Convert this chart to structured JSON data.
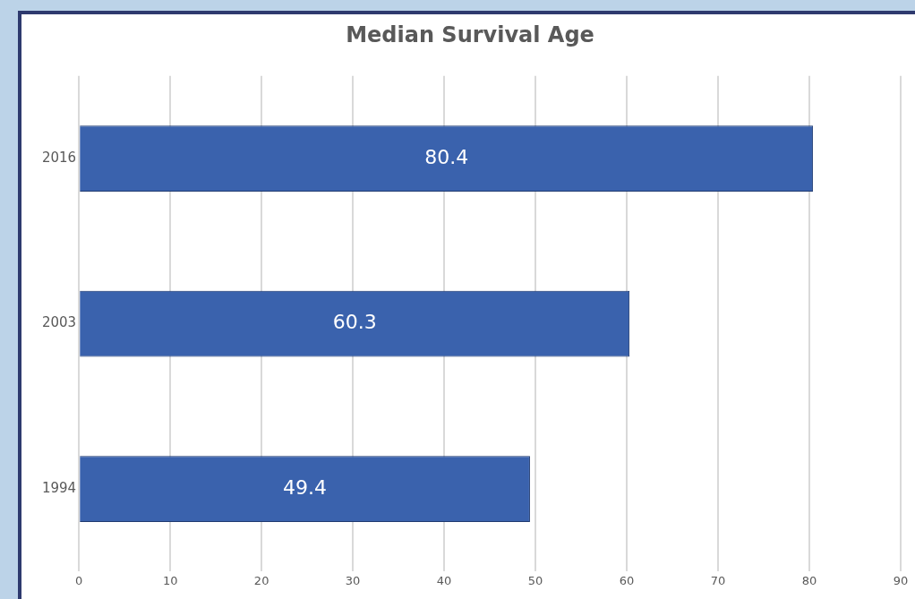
{
  "chart_data": {
    "type": "bar",
    "orientation": "horizontal",
    "title": "Median Survival Age",
    "categories": [
      "2016",
      "2003",
      "1994"
    ],
    "values": [
      80.4,
      60.3,
      49.4
    ],
    "color": "#3a62ad",
    "xlim": [
      0,
      90
    ],
    "xticks": [
      0,
      10,
      20,
      30,
      40,
      50,
      60,
      70,
      80,
      90
    ],
    "grid": "x",
    "data_labels": true
  }
}
